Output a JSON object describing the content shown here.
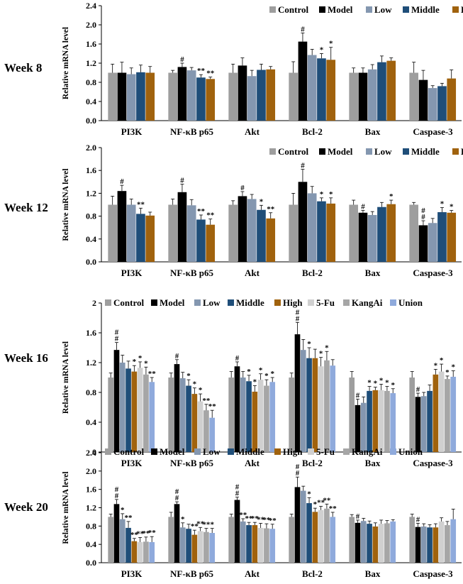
{
  "chart_data": [
    {
      "type": "bar",
      "panel_label": "Week 8",
      "ylabel": "Relative mRNA level",
      "ylim": [
        0,
        2.4
      ],
      "yticks": [
        "0.0",
        "0.4",
        "0.8",
        "1.2",
        "1.6",
        "2.0",
        "2.4"
      ],
      "categories": [
        "PI3K",
        "NF-κB p65",
        "Akt",
        "Bcl-2",
        "Bax",
        "Caspase-3"
      ],
      "series": [
        {
          "name": "Control",
          "color": "#9e9e9e",
          "values": [
            1.0,
            1.0,
            1.0,
            1.0,
            1.0,
            1.0
          ],
          "errors": [
            0.18,
            0.05,
            0.18,
            0.23,
            0.1,
            0.22
          ],
          "labels": [
            "",
            "",
            "",
            "",
            "",
            ""
          ]
        },
        {
          "name": "Model",
          "color": "#000000",
          "values": [
            1.0,
            1.12,
            1.15,
            1.65,
            1.0,
            0.85
          ],
          "errors": [
            0.22,
            0.08,
            0.16,
            0.18,
            0.1,
            0.2
          ],
          "labels": [
            "",
            "#",
            "",
            "#",
            "",
            ""
          ]
        },
        {
          "name": "Low",
          "color": "#8497b0",
          "values": [
            0.97,
            1.05,
            0.93,
            1.37,
            1.07,
            0.68
          ],
          "errors": [
            0.13,
            0.06,
            0.12,
            0.12,
            0.1,
            0.05
          ],
          "labels": [
            "",
            "",
            "",
            "",
            "",
            ""
          ]
        },
        {
          "name": "Middle",
          "color": "#1f4e79",
          "values": [
            1.01,
            0.9,
            1.06,
            1.3,
            1.22,
            0.72
          ],
          "errors": [
            0.15,
            0.06,
            0.12,
            0.1,
            0.13,
            0.06
          ],
          "labels": [
            "",
            "**",
            "",
            "*",
            "",
            ""
          ]
        },
        {
          "name": "High",
          "color": "#a0620d",
          "values": [
            1.0,
            0.87,
            1.07,
            1.27,
            1.25,
            0.88
          ],
          "errors": [
            0.13,
            0.04,
            0.06,
            0.26,
            0.06,
            0.18
          ],
          "labels": [
            "",
            "**",
            "",
            "*",
            "",
            ""
          ]
        }
      ]
    },
    {
      "type": "bar",
      "panel_label": "Week 12",
      "ylabel": "Relative mRNA level",
      "ylim": [
        0,
        2.0
      ],
      "yticks": [
        "0.0",
        "0.4",
        "0.8",
        "1.2",
        "1.6",
        "2.0"
      ],
      "categories": [
        "PI3K",
        "NF-κB p65",
        "Akt",
        "Bcl-2",
        "Bax",
        "Caspase-3"
      ],
      "series": [
        {
          "name": "Control",
          "color": "#9e9e9e",
          "values": [
            1.0,
            1.0,
            1.0,
            1.0,
            1.0,
            1.0
          ],
          "errors": [
            0.15,
            0.1,
            0.07,
            0.2,
            0.08,
            0.04
          ],
          "labels": [
            "",
            "",
            "",
            "",
            "",
            ""
          ]
        },
        {
          "name": "Model",
          "color": "#000000",
          "values": [
            1.24,
            1.22,
            1.15,
            1.4,
            0.86,
            0.64
          ],
          "errors": [
            0.1,
            0.14,
            0.08,
            0.22,
            0.04,
            0.08
          ],
          "labels": [
            "#",
            "#",
            "#",
            "#",
            "#",
            "#\n#"
          ]
        },
        {
          "name": "Low",
          "color": "#8497b0",
          "values": [
            1.0,
            0.99,
            1.1,
            1.2,
            0.82,
            0.68
          ],
          "errors": [
            0.1,
            0.1,
            0.08,
            0.12,
            0.06,
            0.08
          ],
          "labels": [
            "",
            "",
            "",
            "",
            "",
            ""
          ]
        },
        {
          "name": "Middle",
          "color": "#1f4e79",
          "values": [
            0.84,
            0.74,
            0.91,
            1.06,
            0.96,
            0.87
          ],
          "errors": [
            0.1,
            0.08,
            0.08,
            0.06,
            0.08,
            0.08
          ],
          "labels": [
            "**",
            "**",
            "*",
            "*",
            "",
            "*"
          ]
        },
        {
          "name": "High",
          "color": "#a0620d",
          "values": [
            0.81,
            0.65,
            0.76,
            1.02,
            1.01,
            0.86
          ],
          "errors": [
            0.06,
            0.1,
            0.1,
            0.1,
            0.07,
            0.04
          ],
          "labels": [
            "",
            "**",
            "**",
            "*",
            "*",
            "*"
          ]
        }
      ]
    },
    {
      "type": "bar",
      "panel_label": "Week 16",
      "ylabel": "Relative mRNA level",
      "ylim": [
        0,
        2.0
      ],
      "yticks": [
        "0",
        "0.4",
        "0.8",
        "1.2",
        "1.6",
        "2"
      ],
      "categories": [
        "PI3K",
        "NF-κB p65",
        "Akt",
        "Bcl-2",
        "Bax",
        "Caspase-3"
      ],
      "series": [
        {
          "name": "Control",
          "color": "#9e9e9e",
          "values": [
            1.0,
            1.0,
            1.0,
            1.0,
            1.0,
            1.0
          ],
          "errors": [
            0.06,
            0.06,
            0.08,
            0.06,
            0.08,
            0.08
          ],
          "labels": [
            "",
            "",
            "",
            "",
            "",
            ""
          ]
        },
        {
          "name": "Model",
          "color": "#000000",
          "values": [
            1.37,
            1.18,
            1.15,
            1.58,
            0.63,
            0.74
          ],
          "errors": [
            0.1,
            0.06,
            0.06,
            0.16,
            0.08,
            0.05
          ],
          "labels": [
            "#\n#",
            "#",
            "#",
            "#\n#",
            "#",
            "#"
          ]
        },
        {
          "name": "Low",
          "color": "#8497b0",
          "values": [
            1.2,
            0.99,
            1.0,
            1.37,
            0.66,
            0.75
          ],
          "errors": [
            0.1,
            0.08,
            0.08,
            0.14,
            0.08,
            0.05
          ],
          "labels": [
            "",
            "",
            "",
            "",
            "",
            ""
          ]
        },
        {
          "name": "Middle",
          "color": "#1f4e79",
          "values": [
            1.12,
            0.89,
            0.95,
            1.26,
            0.82,
            0.82
          ],
          "errors": [
            0.1,
            0.08,
            0.08,
            0.14,
            0.06,
            0.08
          ],
          "labels": [
            "",
            "*",
            "*",
            "*",
            "*",
            ""
          ]
        },
        {
          "name": "High",
          "color": "#a0620d",
          "values": [
            1.08,
            0.78,
            0.81,
            1.26,
            0.83,
            1.04
          ],
          "errors": [
            0.08,
            0.08,
            0.08,
            0.12,
            0.04,
            0.07
          ],
          "labels": [
            "*",
            "*",
            "*",
            "",
            "*",
            "*"
          ]
        },
        {
          "name": "5-Fu",
          "color": "#d0d0d0",
          "values": [
            1.13,
            0.68,
            0.97,
            1.15,
            0.83,
            1.08
          ],
          "errors": [
            0.08,
            0.1,
            0.08,
            0.12,
            0.08,
            0.1
          ],
          "labels": [
            "*",
            "*",
            "*",
            "*",
            "*",
            "*"
          ]
        },
        {
          "name": "KangAi",
          "color": "#a6a6a6",
          "values": [
            1.04,
            0.56,
            0.89,
            1.23,
            0.82,
            0.98
          ],
          "errors": [
            0.1,
            0.08,
            0.08,
            0.12,
            0.06,
            0.04
          ],
          "labels": [
            "*",
            "**",
            "*",
            "*",
            "*",
            "*"
          ]
        },
        {
          "name": "Union",
          "color": "#8faadc",
          "values": [
            0.94,
            0.46,
            0.94,
            1.16,
            0.79,
            1.01
          ],
          "errors": [
            0.06,
            0.1,
            0.06,
            0.08,
            0.06,
            0.08
          ],
          "labels": [
            "**",
            "**",
            "*",
            "",
            "*",
            "*"
          ]
        }
      ]
    },
    {
      "type": "bar",
      "panel_label": "Week 20",
      "ylabel": "Relative mRNA level",
      "ylim": [
        0,
        2.4
      ],
      "yticks": [
        "0.0",
        "0.4",
        "0.8",
        "1.2",
        "1.6",
        "2.0",
        "2.4"
      ],
      "categories": [
        "PI3K",
        "NF-κB p65",
        "Akt",
        "Bcl-2",
        "Bax",
        "Caspase-3"
      ],
      "series": [
        {
          "name": "Control",
          "color": "#9e9e9e",
          "values": [
            1.0,
            1.0,
            1.0,
            1.0,
            1.0,
            1.0
          ],
          "errors": [
            0.06,
            0.1,
            0.06,
            0.06,
            0.05,
            0.06
          ],
          "labels": [
            "",
            "",
            "",
            "",
            "",
            ""
          ]
        },
        {
          "name": "Model",
          "color": "#000000",
          "values": [
            1.28,
            1.28,
            1.37,
            1.65,
            0.87,
            0.78
          ],
          "errors": [
            0.1,
            0.05,
            0.06,
            0.22,
            0.06,
            0.08
          ],
          "labels": [
            "#\n#",
            "#\n#",
            "#\n#",
            "#\n#",
            "#",
            "#"
          ]
        },
        {
          "name": "Low",
          "color": "#8497b0",
          "values": [
            0.95,
            0.77,
            0.9,
            1.57,
            0.91,
            0.79
          ],
          "errors": [
            0.12,
            0.1,
            0.06,
            0.1,
            0.06,
            0.06
          ],
          "labels": [
            "*",
            "*",
            "**",
            "",
            "",
            ""
          ]
        },
        {
          "name": "Middle",
          "color": "#1f4e79",
          "values": [
            0.76,
            0.74,
            0.82,
            1.3,
            0.85,
            0.77
          ],
          "errors": [
            0.14,
            0.1,
            0.06,
            0.12,
            0.06,
            0.06
          ],
          "labels": [
            "**",
            "",
            "**",
            "*",
            "",
            ""
          ]
        },
        {
          "name": "High",
          "color": "#a0620d",
          "values": [
            0.47,
            0.61,
            0.82,
            1.11,
            0.79,
            0.77
          ],
          "errors": [
            0.06,
            0.1,
            0.06,
            0.08,
            0.08,
            0.08
          ],
          "labels": [
            "**",
            "**",
            "**",
            "*",
            "",
            ""
          ]
        },
        {
          "name": "5-Fu",
          "color": "#d0d0d0",
          "values": [
            0.45,
            0.69,
            0.76,
            1.15,
            0.85,
            0.9
          ],
          "errors": [
            0.1,
            0.08,
            0.1,
            0.08,
            0.08,
            0.08
          ],
          "labels": [
            "**",
            "**",
            "**",
            "**",
            "",
            ""
          ]
        },
        {
          "name": "KangAi",
          "color": "#a6a6a6",
          "values": [
            0.46,
            0.67,
            0.75,
            1.18,
            0.86,
            0.82
          ],
          "errors": [
            0.1,
            0.08,
            0.1,
            0.1,
            0.06,
            0.08
          ],
          "labels": [
            "**",
            "**",
            "**",
            "**",
            "",
            ""
          ]
        },
        {
          "name": "Union",
          "color": "#8faadc",
          "values": [
            0.45,
            0.65,
            0.74,
            1.0,
            0.9,
            0.95
          ],
          "errors": [
            0.12,
            0.1,
            0.1,
            0.1,
            0.04,
            0.22
          ],
          "labels": [
            "**",
            "*",
            "**",
            "**",
            "",
            ""
          ]
        }
      ]
    }
  ]
}
